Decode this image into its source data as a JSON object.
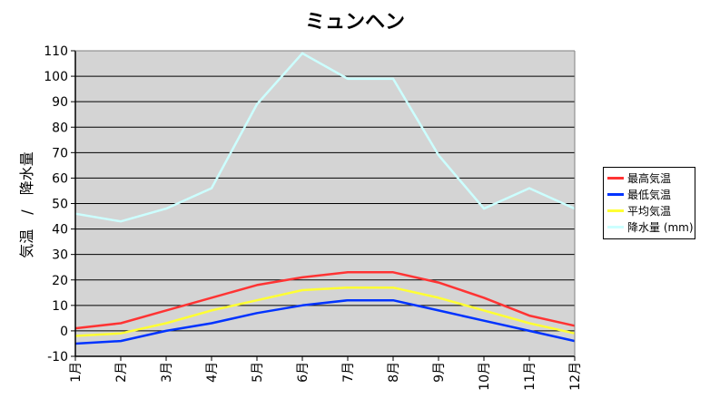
{
  "chart_data": {
    "type": "line",
    "title": "ミュンヘン",
    "ylabel": "気温　/　降水量",
    "xlabel": "",
    "categories": [
      "1月",
      "2月",
      "3月",
      "4月",
      "5月",
      "6月",
      "7月",
      "8月",
      "9月",
      "10月",
      "11月",
      "12月"
    ],
    "ylim": [
      -10,
      110
    ],
    "yticks": [
      -10,
      0,
      10,
      20,
      30,
      40,
      50,
      60,
      70,
      80,
      90,
      100,
      110
    ],
    "grid": true,
    "legend_position": "right",
    "plot_background": "#D4D4D4",
    "series": [
      {
        "name": "最高気温",
        "color": "#FF3333",
        "values": [
          1,
          3,
          8,
          13,
          18,
          21,
          23,
          23,
          19,
          13,
          6,
          2
        ]
      },
      {
        "name": "最低気温",
        "color": "#0033FF",
        "values": [
          -5,
          -4,
          0,
          3,
          7,
          10,
          12,
          12,
          8,
          4,
          0,
          -4
        ]
      },
      {
        "name": "平均気温",
        "color": "#FFFF33",
        "values": [
          -2,
          -1,
          3,
          8,
          12,
          16,
          17,
          17,
          13,
          8,
          3,
          -1
        ]
      },
      {
        "name": "降水量 (mm)",
        "color": "#CCFFFF",
        "values": [
          46,
          43,
          48,
          56,
          89,
          109,
          99,
          99,
          69,
          48,
          56,
          48
        ]
      }
    ]
  }
}
